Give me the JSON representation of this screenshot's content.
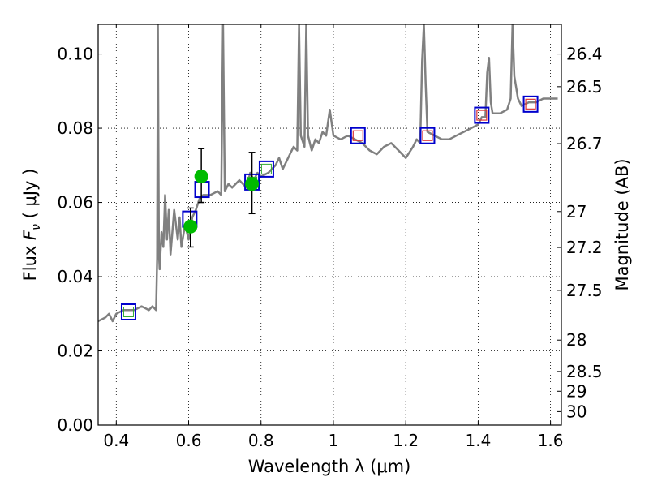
{
  "chart_data": {
    "type": "line",
    "xlabel": "Wavelength  λ (μm)",
    "ylabel_text": "Flux",
    "ylabel_symbol": "F",
    "ylabel_subscript": "ν",
    "ylabel_units": "( μJy )",
    "ylabel_right": "Magnitude (AB)",
    "xlim": [
      0.35,
      1.63
    ],
    "ylim": [
      0.0,
      0.108
    ],
    "xticks": [
      0.4,
      0.6,
      0.8,
      1.0,
      1.2,
      1.4,
      1.6
    ],
    "xtick_labels": [
      "0.4",
      "0.6",
      "0.8",
      "1",
      "1.2",
      "1.4",
      "1.6"
    ],
    "yticks": [
      0.0,
      0.02,
      0.04,
      0.06,
      0.08,
      0.1
    ],
    "ytick_labels": [
      "0.00",
      "0.02",
      "0.04",
      "0.06",
      "0.08",
      "0.10"
    ],
    "right_ticks": [
      26.4,
      26.5,
      26.7,
      27,
      27.2,
      27.5,
      28,
      28.5,
      29,
      30
    ],
    "right_tick_labels": [
      "26.4",
      "26.5",
      "26.7",
      "27",
      "27.2",
      "27.5",
      "28",
      "28.5",
      "29",
      "30"
    ],
    "grid": true,
    "colors": {
      "spectrum": "#808080",
      "model_box": "#0000cc",
      "green_box": "#33aa33",
      "red_box": "#dd3333",
      "observed": "#00bb00",
      "errorbar": "#000000"
    },
    "series": [
      {
        "name": "model spectrum",
        "points": [
          [
            0.35,
            0.028
          ],
          [
            0.37,
            0.029
          ],
          [
            0.38,
            0.03
          ],
          [
            0.39,
            0.028
          ],
          [
            0.4,
            0.03
          ],
          [
            0.42,
            0.031
          ],
          [
            0.45,
            0.031
          ],
          [
            0.47,
            0.032
          ],
          [
            0.49,
            0.031
          ],
          [
            0.5,
            0.032
          ],
          [
            0.51,
            0.031
          ],
          [
            0.513,
            0.045
          ],
          [
            0.515,
            0.108
          ],
          [
            0.518,
            0.046
          ],
          [
            0.52,
            0.042
          ],
          [
            0.525,
            0.052
          ],
          [
            0.53,
            0.048
          ],
          [
            0.535,
            0.062
          ],
          [
            0.54,
            0.05
          ],
          [
            0.545,
            0.058
          ],
          [
            0.55,
            0.046
          ],
          [
            0.56,
            0.058
          ],
          [
            0.57,
            0.05
          ],
          [
            0.575,
            0.056
          ],
          [
            0.58,
            0.048
          ],
          [
            0.59,
            0.054
          ],
          [
            0.6,
            0.05
          ],
          [
            0.61,
            0.056
          ],
          [
            0.62,
            0.058
          ],
          [
            0.63,
            0.061
          ],
          [
            0.64,
            0.062
          ],
          [
            0.66,
            0.062
          ],
          [
            0.68,
            0.063
          ],
          [
            0.69,
            0.062
          ],
          [
            0.695,
            0.108
          ],
          [
            0.7,
            0.063
          ],
          [
            0.71,
            0.065
          ],
          [
            0.72,
            0.064
          ],
          [
            0.74,
            0.066
          ],
          [
            0.75,
            0.065
          ],
          [
            0.76,
            0.064
          ],
          [
            0.77,
            0.068
          ],
          [
            0.78,
            0.066
          ],
          [
            0.79,
            0.068
          ],
          [
            0.8,
            0.067
          ],
          [
            0.82,
            0.068
          ],
          [
            0.84,
            0.07
          ],
          [
            0.85,
            0.072
          ],
          [
            0.86,
            0.069
          ],
          [
            0.87,
            0.071
          ],
          [
            0.88,
            0.073
          ],
          [
            0.89,
            0.075
          ],
          [
            0.9,
            0.074
          ],
          [
            0.905,
            0.108
          ],
          [
            0.91,
            0.078
          ],
          [
            0.92,
            0.075
          ],
          [
            0.925,
            0.108
          ],
          [
            0.93,
            0.078
          ],
          [
            0.94,
            0.074
          ],
          [
            0.95,
            0.077
          ],
          [
            0.96,
            0.076
          ],
          [
            0.97,
            0.079
          ],
          [
            0.98,
            0.078
          ],
          [
            0.99,
            0.085
          ],
          [
            1.0,
            0.078
          ],
          [
            1.02,
            0.077
          ],
          [
            1.04,
            0.078
          ],
          [
            1.06,
            0.077
          ],
          [
            1.08,
            0.076
          ],
          [
            1.1,
            0.074
          ],
          [
            1.12,
            0.073
          ],
          [
            1.14,
            0.075
          ],
          [
            1.16,
            0.076
          ],
          [
            1.18,
            0.074
          ],
          [
            1.2,
            0.072
          ],
          [
            1.22,
            0.075
          ],
          [
            1.23,
            0.077
          ],
          [
            1.24,
            0.076
          ],
          [
            1.245,
            0.098
          ],
          [
            1.25,
            0.108
          ],
          [
            1.255,
            0.092
          ],
          [
            1.26,
            0.079
          ],
          [
            1.28,
            0.078
          ],
          [
            1.3,
            0.077
          ],
          [
            1.32,
            0.077
          ],
          [
            1.34,
            0.078
          ],
          [
            1.36,
            0.079
          ],
          [
            1.38,
            0.08
          ],
          [
            1.4,
            0.081
          ],
          [
            1.41,
            0.083
          ],
          [
            1.42,
            0.083
          ],
          [
            1.425,
            0.095
          ],
          [
            1.43,
            0.099
          ],
          [
            1.435,
            0.087
          ],
          [
            1.44,
            0.084
          ],
          [
            1.46,
            0.084
          ],
          [
            1.48,
            0.085
          ],
          [
            1.49,
            0.088
          ],
          [
            1.495,
            0.108
          ],
          [
            1.5,
            0.094
          ],
          [
            1.51,
            0.088
          ],
          [
            1.52,
            0.086
          ],
          [
            1.54,
            0.087
          ],
          [
            1.56,
            0.087
          ],
          [
            1.58,
            0.088
          ],
          [
            1.6,
            0.088
          ],
          [
            1.62,
            0.088
          ]
        ]
      }
    ],
    "model_photometry": [
      {
        "x": 0.434,
        "y": 0.0305,
        "inner": "green"
      },
      {
        "x": 0.603,
        "y": 0.0555,
        "inner": "none"
      },
      {
        "x": 0.637,
        "y": 0.0635,
        "inner": "none"
      },
      {
        "x": 0.775,
        "y": 0.0655,
        "inner": "green"
      },
      {
        "x": 0.815,
        "y": 0.069,
        "inner": "green"
      },
      {
        "x": 1.068,
        "y": 0.078,
        "inner": "red"
      },
      {
        "x": 1.26,
        "y": 0.078,
        "inner": "red"
      },
      {
        "x": 1.41,
        "y": 0.0835,
        "inner": "red"
      },
      {
        "x": 1.545,
        "y": 0.0865,
        "inner": "red"
      }
    ],
    "observed_photometry": [
      {
        "x": 0.605,
        "y": 0.0535,
        "yerr_low": 0.048,
        "yerr_high": 0.0585
      },
      {
        "x": 0.635,
        "y": 0.067,
        "yerr_low": 0.06,
        "yerr_high": 0.0745
      },
      {
        "x": 0.775,
        "y": 0.065,
        "yerr_low": 0.057,
        "yerr_high": 0.0735
      }
    ]
  }
}
